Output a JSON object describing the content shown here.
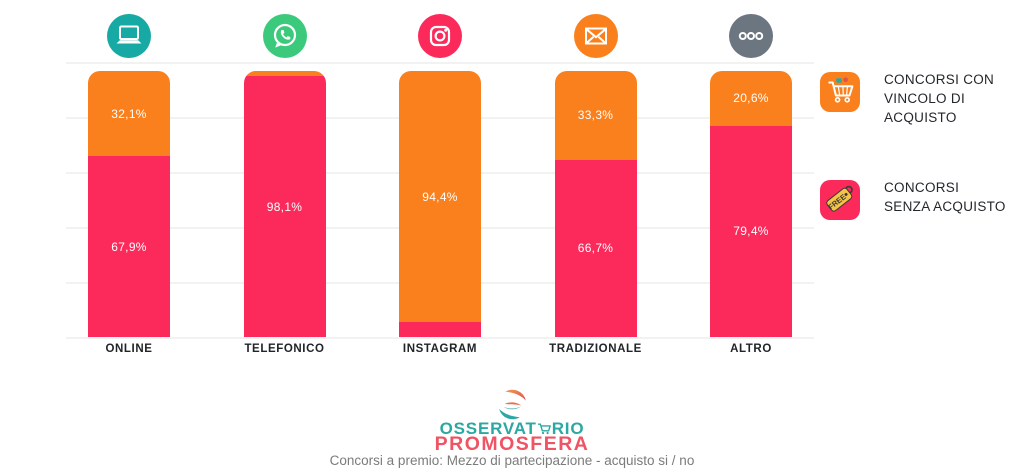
{
  "page": {
    "background": "#ffffff"
  },
  "chart_data": {
    "type": "bar",
    "stacked": true,
    "orientation": "vertical",
    "unit": "percent",
    "ylim": [
      0,
      100
    ],
    "grid": true,
    "legend_position": "right",
    "categories": [
      "ONLINE",
      "TELEFONICO",
      "INSTAGRAM",
      "TRADIZIONALE",
      "ALTRO"
    ],
    "series": [
      {
        "name": "CONCORSI CON VINCOLO DI ACQUISTO",
        "color": "#F9801D",
        "position": "top",
        "values": [
          32.1,
          1.9,
          94.4,
          33.3,
          20.6
        ],
        "labels": [
          "32,1%",
          "",
          "94,4%",
          "33,3%",
          "20,6%"
        ]
      },
      {
        "name": "CONCORSI SENZA ACQUISTO",
        "color": "#FB2A5B",
        "position": "bottom",
        "values": [
          67.9,
          98.1,
          5.6,
          66.7,
          79.4
        ],
        "labels": [
          "67,9%",
          "98,1%",
          "",
          "66,7%",
          "79,4%"
        ]
      }
    ],
    "category_icons": [
      {
        "name": "laptop-icon",
        "background": "#17A9A3"
      },
      {
        "name": "whatsapp-icon",
        "background": "#3BCA7C"
      },
      {
        "name": "instagram-icon",
        "background": "#FB2A5B"
      },
      {
        "name": "email-icon",
        "background": "#F9801D"
      },
      {
        "name": "ellipsis-icon",
        "background": "#6C7681"
      }
    ]
  },
  "legend": {
    "items": [
      {
        "label": "CONCORSI CON VINCOLO DI ACQUISTO",
        "color": "#F9801D",
        "icon": "shopping-cart-icon"
      },
      {
        "label": "CONCORSI SENZA ACQUISTO",
        "color": "#FB2A5B",
        "icon": "free-tag-icon"
      }
    ]
  },
  "footer": {
    "brand_line1_pre": "OSSERVAT",
    "brand_line1_post": "RIO",
    "brand_line2": "PROMOSFERA",
    "brand_teal": "#2CA8A3",
    "brand_coral": "#EF5364",
    "caption": "Concorsi a premio: Mezzo di partecipazione - acquisto si / no"
  }
}
